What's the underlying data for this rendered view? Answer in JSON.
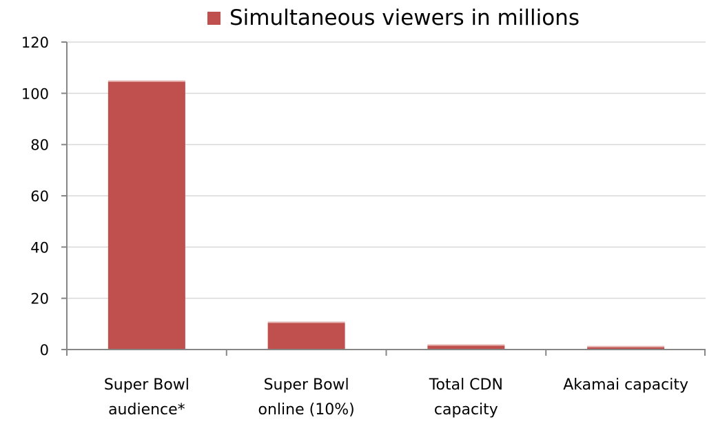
{
  "chart_data": {
    "type": "bar",
    "categories": [
      [
        "Super Bowl",
        "audience*"
      ],
      [
        "Super Bowl",
        "online (10%)"
      ],
      [
        "Total CDN",
        "capacity"
      ],
      [
        "Akamai capacity"
      ]
    ],
    "series": [
      {
        "name": "Simultaneous viewers in millions",
        "values": [
          104.5,
          10.4,
          1.5,
          0.9
        ],
        "color": "#c0504d"
      }
    ],
    "ylim": [
      0,
      120
    ],
    "yticks": [
      0,
      20,
      40,
      60,
      80,
      100,
      120
    ],
    "grid": true,
    "legend_position": "top",
    "colors": {
      "bar": "#c0504d",
      "bar_highlight": "#e6b9b8",
      "grid": "#d9d9d9",
      "axis": "#868686"
    }
  }
}
